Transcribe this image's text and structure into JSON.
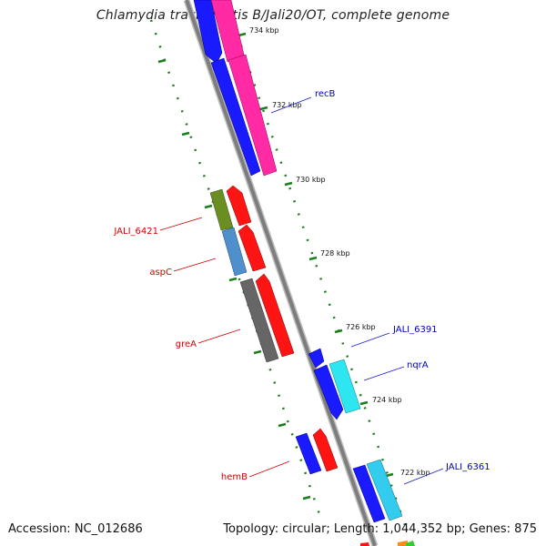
{
  "title": "Chlamydia trachomatis B/Jali20/OT, complete genome",
  "footer": {
    "accession": "Accession: NC_012686",
    "summary": "Topology: circular; Length: 1,044,352 bp; Genes: 875"
  },
  "colors": {
    "backbone": "#8c8c8c",
    "tick": "#1a7f1a",
    "forward_label": "#0000bb",
    "reverse_label": "#cc0000"
  },
  "ticks": [
    {
      "label": "734 kbp"
    },
    {
      "label": "732 kbp"
    },
    {
      "label": "730 kbp"
    },
    {
      "label": "728 kbp"
    },
    {
      "label": "726 kbp"
    },
    {
      "label": "724 kbp"
    },
    {
      "label": "722 kbp"
    }
  ],
  "gene_labels": [
    {
      "name": "recB",
      "strand": "forward"
    },
    {
      "name": "JALI_6421",
      "strand": "reverse"
    },
    {
      "name": "aspC",
      "strand": "reverse"
    },
    {
      "name": "greA",
      "strand": "reverse"
    },
    {
      "name": "JALI_6391",
      "strand": "forward"
    },
    {
      "name": "nqrA",
      "strand": "forward"
    },
    {
      "name": "hemB",
      "strand": "reverse"
    },
    {
      "name": "JALI_6361",
      "strand": "forward"
    }
  ]
}
